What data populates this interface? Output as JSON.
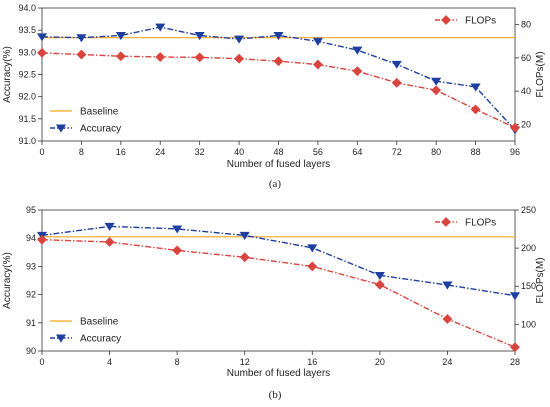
{
  "chart_data": [
    {
      "type": "line",
      "caption": "(a)",
      "x": [
        0,
        8,
        16,
        24,
        32,
        40,
        48,
        56,
        64,
        72,
        80,
        88,
        96
      ],
      "xlabel": "Number of fused layers",
      "ylabel": "Accuracy(%)",
      "y2label": "FLOPs(M)",
      "xlim": [
        0,
        96
      ],
      "ylim": [
        91.0,
        94.0
      ],
      "y2lim": [
        10,
        90
      ],
      "xticks": [
        "0",
        "8",
        "16",
        "24",
        "32",
        "40",
        "48",
        "56",
        "64",
        "72",
        "80",
        "88",
        "96"
      ],
      "yticks": [
        "91.0",
        "91.5",
        "92.0",
        "92.5",
        "93.0",
        "93.5",
        "94.0"
      ],
      "y2ticks": [
        "20",
        "40",
        "60",
        "80"
      ],
      "grid": false,
      "baseline": {
        "name": "Baseline",
        "value": 93.33,
        "color": "#f5a623"
      },
      "series": [
        {
          "name": "Accuracy",
          "axis": "left",
          "color": "#1f3fa0",
          "marker": "triangle-down",
          "values": [
            93.35,
            93.33,
            93.38,
            93.57,
            93.38,
            93.3,
            93.38,
            93.25,
            93.05,
            92.73,
            92.35,
            92.22,
            91.25
          ]
        },
        {
          "name": "FLOPs",
          "axis": "right",
          "color": "#d9443f",
          "marker": "diamond",
          "values": [
            63,
            62,
            61,
            60.5,
            60.3,
            59.5,
            58,
            56,
            52,
            45,
            40.5,
            29,
            18
          ]
        }
      ],
      "legend_left": [
        "Baseline",
        "Accuracy"
      ],
      "legend_right": [
        "FLOPs"
      ]
    },
    {
      "type": "line",
      "caption": "(b)",
      "x": [
        0,
        4,
        8,
        12,
        16,
        20,
        24,
        28
      ],
      "xlabel": "Number of fused layers",
      "ylabel": "Accuracy(%)",
      "y2label": "FLOPs(M)",
      "xlim": [
        0,
        28
      ],
      "ylim": [
        90,
        95
      ],
      "y2lim": [
        65,
        250
      ],
      "xticks": [
        "0",
        "4",
        "8",
        "12",
        "16",
        "20",
        "24",
        "28"
      ],
      "yticks": [
        "90",
        "91",
        "92",
        "93",
        "94",
        "95"
      ],
      "y2ticks": [
        "100",
        "150",
        "200",
        "250"
      ],
      "grid": false,
      "baseline": {
        "name": "Baseline",
        "value": 94.05,
        "color": "#f5a623"
      },
      "series": [
        {
          "name": "Accuracy",
          "axis": "left",
          "color": "#1f3fa0",
          "marker": "triangle-down",
          "values": [
            94.1,
            94.42,
            94.33,
            94.1,
            93.66,
            92.68,
            92.34,
            91.96
          ]
        },
        {
          "name": "FLOPs",
          "axis": "right",
          "color": "#d9443f",
          "marker": "diamond",
          "values": [
            211,
            208,
            197,
            188,
            176,
            152,
            107,
            70
          ]
        }
      ],
      "legend_left": [
        "Baseline",
        "Accuracy"
      ],
      "legend_right": [
        "FLOPs"
      ]
    }
  ]
}
